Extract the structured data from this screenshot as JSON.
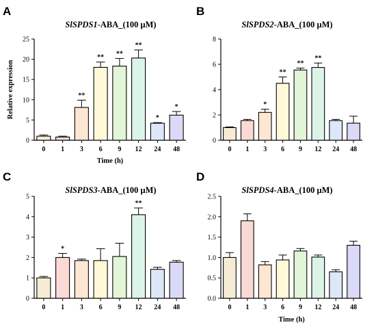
{
  "colors": [
    "#f6ecd6",
    "#fbd9d5",
    "#fde6d2",
    "#fff9d8",
    "#e2f5d7",
    "#dcf4e8",
    "#dde7f8",
    "#dad9f7"
  ],
  "chart_data": [
    {
      "type": "bar",
      "panel": "A",
      "title_gene": "SlSPDS1",
      "title_rest": "-ABA_(100 μM)",
      "xlabel": "Time (h)",
      "ylabel": "Relative expression",
      "categories": [
        "0",
        "1",
        "3",
        "6",
        "9",
        "12",
        "24",
        "48"
      ],
      "values": [
        1.0,
        0.8,
        8.1,
        18.0,
        18.3,
        20.3,
        4.2,
        6.2
      ],
      "errors": [
        0.3,
        0.2,
        1.8,
        1.3,
        1.9,
        2.0,
        0.15,
        0.9
      ],
      "significance": [
        "",
        "",
        "**",
        "**",
        "**",
        "**",
        "*",
        "*"
      ],
      "ylim": [
        0,
        25
      ],
      "yticks": [
        "0",
        "5",
        "10",
        "15",
        "20",
        "25"
      ]
    },
    {
      "type": "bar",
      "panel": "B",
      "title_gene": "SlSPDS2",
      "title_rest": "-ABA_(100 μM)",
      "xlabel": "",
      "ylabel": "",
      "categories": [
        "0",
        "1",
        "3",
        "6",
        "9",
        "12",
        "24",
        "48"
      ],
      "values": [
        1.0,
        1.55,
        2.2,
        4.5,
        5.55,
        5.75,
        1.55,
        1.35
      ],
      "errors": [
        0.05,
        0.1,
        0.25,
        0.5,
        0.15,
        0.35,
        0.1,
        0.55
      ],
      "significance": [
        "",
        "",
        "*",
        "**",
        "**",
        "**",
        "",
        ""
      ],
      "ylim": [
        0,
        8
      ],
      "yticks": [
        "0",
        "2",
        "4",
        "6",
        "8"
      ]
    },
    {
      "type": "bar",
      "panel": "C",
      "title_gene": "SlSPDS3",
      "title_rest": "-ABA_(100 μM)",
      "xlabel": "",
      "ylabel": "",
      "categories": [
        "0",
        "1",
        "3",
        "6",
        "9",
        "12",
        "24",
        "48"
      ],
      "values": [
        1.0,
        2.0,
        1.85,
        1.85,
        2.05,
        4.1,
        1.42,
        1.77
      ],
      "errors": [
        0.07,
        0.2,
        0.07,
        0.58,
        0.65,
        0.33,
        0.1,
        0.08
      ],
      "significance": [
        "",
        "*",
        "",
        "",
        "",
        "**",
        "",
        ""
      ],
      "ylim": [
        0,
        5
      ],
      "yticks": [
        "0",
        "1",
        "2",
        "3",
        "4",
        "5"
      ]
    },
    {
      "type": "bar",
      "panel": "D",
      "title_gene": "SlSPDS4",
      "title_rest": "-ABA_(100 μM)",
      "xlabel": "Time (h)",
      "ylabel": "",
      "categories": [
        "0",
        "1",
        "3",
        "6",
        "9",
        "12",
        "24",
        "48"
      ],
      "values": [
        1.0,
        1.9,
        0.82,
        0.94,
        1.16,
        1.01,
        0.65,
        1.3
      ],
      "errors": [
        0.12,
        0.17,
        0.08,
        0.12,
        0.06,
        0.05,
        0.05,
        0.1
      ],
      "significance": [
        "",
        "",
        "",
        "",
        "",
        "",
        "",
        ""
      ],
      "ylim": [
        0,
        2.5
      ],
      "yticks": [
        "0.0",
        "0.5",
        "1.0",
        "1.5",
        "2.0",
        "2.5"
      ]
    }
  ]
}
